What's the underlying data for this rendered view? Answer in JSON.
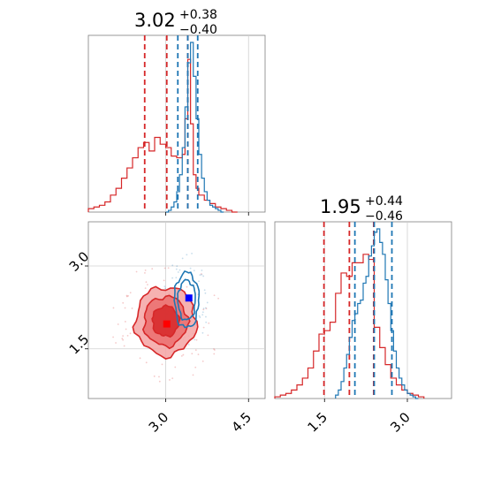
{
  "chart_data": [
    {
      "type": "histogram",
      "panel": "top-left",
      "title": {
        "value": "3.02",
        "plus": "+0.38",
        "minus": "−0.40"
      },
      "xlim": [
        1.6,
        4.8
      ],
      "x_ticks": [
        3.0,
        4.5
      ],
      "grid": true,
      "series": [
        {
          "color": "#d62728",
          "quantiles": [
            2.62,
            3.02,
            3.4
          ],
          "bins_x": [
            1.6,
            1.7,
            1.8,
            1.9,
            2.0,
            2.1,
            2.2,
            2.3,
            2.4,
            2.5,
            2.6,
            2.7,
            2.8,
            2.9,
            3.0,
            3.1,
            3.2,
            3.3,
            3.35,
            3.4,
            3.45,
            3.5,
            3.55,
            3.6,
            3.7,
            3.8,
            3.9,
            4.0,
            4.1,
            4.2,
            4.3
          ],
          "counts": [
            0.02,
            0.03,
            0.04,
            0.06,
            0.1,
            0.14,
            0.2,
            0.26,
            0.32,
            0.38,
            0.41,
            0.36,
            0.44,
            0.4,
            0.38,
            0.33,
            0.32,
            0.34,
            0.55,
            0.9,
            0.52,
            0.22,
            0.14,
            0.1,
            0.07,
            0.05,
            0.03,
            0.02,
            0.01,
            0.0
          ]
        },
        {
          "color": "#1f77b4",
          "quantiles": [
            3.22,
            3.4,
            3.58
          ],
          "bins_x": [
            3.0,
            3.05,
            3.1,
            3.15,
            3.2,
            3.25,
            3.3,
            3.35,
            3.4,
            3.45,
            3.5,
            3.55,
            3.6,
            3.65,
            3.7,
            3.75,
            3.8,
            3.85,
            3.9,
            3.95,
            4.0,
            4.05
          ],
          "counts": [
            0.0,
            0.01,
            0.03,
            0.06,
            0.12,
            0.22,
            0.38,
            0.62,
            0.88,
            1.0,
            0.8,
            0.55,
            0.34,
            0.2,
            0.12,
            0.07,
            0.04,
            0.03,
            0.02,
            0.01,
            0.0
          ]
        }
      ]
    },
    {
      "type": "contour",
      "panel": "bottom-left",
      "xlim": [
        1.6,
        4.8
      ],
      "ylim": [
        0.6,
        3.8
      ],
      "x_ticks": [
        3.0,
        4.5
      ],
      "y_ticks": [
        1.5,
        3.0
      ],
      "grid": true,
      "series": [
        {
          "color": "#d62728",
          "center": [
            3.0,
            2.0
          ],
          "spread": [
            0.55,
            0.62
          ],
          "levels": 3,
          "filled": true,
          "marker": [
            3.02,
            1.95
          ]
        },
        {
          "color": "#1f77b4",
          "center": [
            3.38,
            2.38
          ],
          "spread": [
            0.22,
            0.5
          ],
          "levels": 2,
          "filled": false,
          "marker": [
            3.42,
            2.42
          ]
        }
      ]
    },
    {
      "type": "histogram",
      "panel": "bottom-right",
      "title": {
        "value": "1.95",
        "plus": "+0.44",
        "minus": "−0.46"
      },
      "xlim": [
        0.6,
        3.8
      ],
      "x_ticks": [
        1.5,
        3.0
      ],
      "grid": true,
      "series": [
        {
          "color": "#d62728",
          "quantiles": [
            1.49,
            1.95,
            2.39
          ],
          "bins_x": [
            0.6,
            0.7,
            0.8,
            0.9,
            1.0,
            1.1,
            1.2,
            1.3,
            1.4,
            1.5,
            1.6,
            1.7,
            1.8,
            1.9,
            2.0,
            2.1,
            2.2,
            2.3,
            2.4,
            2.5,
            2.6,
            2.7,
            2.8,
            2.9,
            3.0,
            3.1,
            3.2,
            3.3
          ],
          "counts": [
            0.01,
            0.02,
            0.03,
            0.05,
            0.08,
            0.12,
            0.18,
            0.28,
            0.38,
            0.4,
            0.45,
            0.62,
            0.74,
            0.72,
            0.8,
            0.8,
            0.85,
            0.82,
            0.42,
            0.3,
            0.2,
            0.12,
            0.08,
            0.05,
            0.03,
            0.02,
            0.01
          ]
        },
        {
          "color": "#1f77b4",
          "quantiles": [
            2.05,
            2.4,
            2.72
          ],
          "bins_x": [
            1.7,
            1.75,
            1.8,
            1.85,
            1.9,
            1.95,
            2.0,
            2.05,
            2.1,
            2.15,
            2.2,
            2.25,
            2.3,
            2.35,
            2.4,
            2.45,
            2.5,
            2.55,
            2.6,
            2.65,
            2.7,
            2.75,
            2.8,
            2.85,
            2.9,
            2.95,
            3.0,
            3.05,
            3.1,
            3.15,
            3.2
          ],
          "counts": [
            0.02,
            0.05,
            0.1,
            0.18,
            0.26,
            0.36,
            0.46,
            0.5,
            0.56,
            0.58,
            0.68,
            0.72,
            0.84,
            0.9,
            0.98,
            1.0,
            0.92,
            0.85,
            0.7,
            0.56,
            0.4,
            0.28,
            0.18,
            0.12,
            0.08,
            0.05,
            0.03,
            0.02,
            0.01,
            0.0
          ]
        }
      ]
    }
  ]
}
